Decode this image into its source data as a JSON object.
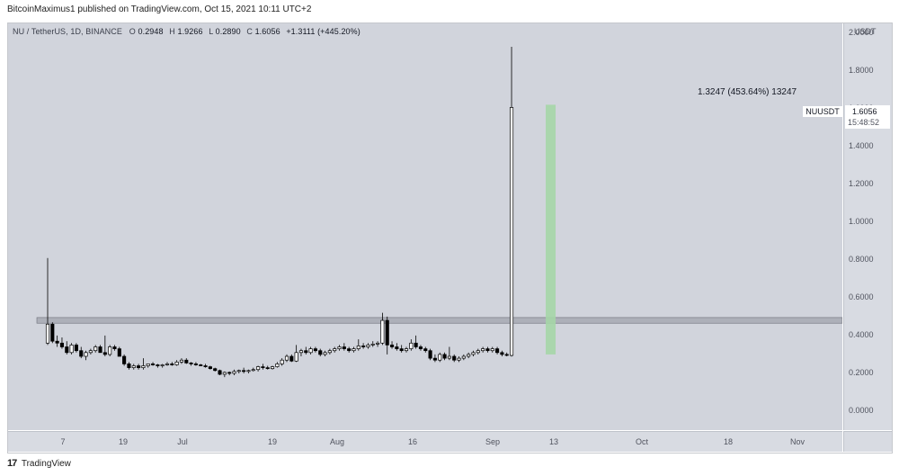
{
  "header": {
    "publish_text": "BitcoinMaximus1 published on TradingView.com, Oct 15, 2021 10:11 UTC+2"
  },
  "legend": {
    "symbol": "NU / TetherUS, 1D, BINANCE",
    "open_label": "O",
    "open": "0.2948",
    "high_label": "H",
    "high": "1.9266",
    "low_label": "L",
    "low": "0.2890",
    "close_label": "C",
    "close": "1.6056",
    "change": "+1.3111 (+445.20%)"
  },
  "price_scale": {
    "currency": "USDT",
    "ticks": [
      "2.0000",
      "1.8000",
      "1.6000",
      "1.4000",
      "1.2000",
      "1.0000",
      "0.8000",
      "0.6000",
      "0.4000",
      "0.2000",
      "0.0000"
    ]
  },
  "time_scale": {
    "ticks": [
      "7",
      "19",
      "Jul",
      "19",
      "Aug",
      "16",
      "Sep",
      "13",
      "Oct",
      "18",
      "Nov"
    ]
  },
  "last_price": {
    "symbol": "NUUSDT",
    "value": "1.6056",
    "countdown": "15:48:52"
  },
  "annotation": {
    "text": "1.3247 (453.64%) 13247"
  },
  "footer": {
    "logo_mark": "17",
    "brand": "TradingView"
  },
  "colors": {
    "background": "#d1d4dc",
    "candle_up": "#ffffff",
    "candle_down": "#000000",
    "support_zone": "#9598a1",
    "target_zone": "#a5d6a7"
  },
  "chart_data": {
    "type": "candlestick",
    "title": "NU / TetherUS, 1D, BINANCE",
    "ylabel": "USDT",
    "ylim": [
      -0.1,
      2.05
    ],
    "x_ticks": [
      "7",
      "19",
      "Jul",
      "19",
      "Aug",
      "16",
      "Sep",
      "13",
      "Oct",
      "18",
      "Nov"
    ],
    "support_zone": [
      0.465,
      0.495
    ],
    "target_zone": [
      0.3,
      1.62
    ],
    "candles": [
      {
        "o": 0.36,
        "h": 0.81,
        "l": 0.35,
        "c": 0.46
      },
      {
        "o": 0.46,
        "h": 0.47,
        "l": 0.36,
        "c": 0.37
      },
      {
        "o": 0.37,
        "h": 0.4,
        "l": 0.34,
        "c": 0.36
      },
      {
        "o": 0.36,
        "h": 0.39,
        "l": 0.33,
        "c": 0.34
      },
      {
        "o": 0.34,
        "h": 0.37,
        "l": 0.3,
        "c": 0.31
      },
      {
        "o": 0.31,
        "h": 0.36,
        "l": 0.3,
        "c": 0.35
      },
      {
        "o": 0.35,
        "h": 0.36,
        "l": 0.31,
        "c": 0.32
      },
      {
        "o": 0.32,
        "h": 0.34,
        "l": 0.28,
        "c": 0.29
      },
      {
        "o": 0.29,
        "h": 0.32,
        "l": 0.27,
        "c": 0.31
      },
      {
        "o": 0.31,
        "h": 0.33,
        "l": 0.3,
        "c": 0.32
      },
      {
        "o": 0.32,
        "h": 0.35,
        "l": 0.31,
        "c": 0.34
      },
      {
        "o": 0.34,
        "h": 0.35,
        "l": 0.31,
        "c": 0.31
      },
      {
        "o": 0.31,
        "h": 0.4,
        "l": 0.29,
        "c": 0.3
      },
      {
        "o": 0.3,
        "h": 0.35,
        "l": 0.29,
        "c": 0.34
      },
      {
        "o": 0.34,
        "h": 0.35,
        "l": 0.32,
        "c": 0.33
      },
      {
        "o": 0.33,
        "h": 0.34,
        "l": 0.29,
        "c": 0.29
      },
      {
        "o": 0.29,
        "h": 0.3,
        "l": 0.24,
        "c": 0.25
      },
      {
        "o": 0.25,
        "h": 0.26,
        "l": 0.22,
        "c": 0.23
      },
      {
        "o": 0.23,
        "h": 0.25,
        "l": 0.22,
        "c": 0.24
      },
      {
        "o": 0.24,
        "h": 0.25,
        "l": 0.22,
        "c": 0.23
      },
      {
        "o": 0.23,
        "h": 0.28,
        "l": 0.22,
        "c": 0.24
      },
      {
        "o": 0.24,
        "h": 0.25,
        "l": 0.23,
        "c": 0.25
      },
      {
        "o": 0.25,
        "h": 0.26,
        "l": 0.24,
        "c": 0.245
      },
      {
        "o": 0.245,
        "h": 0.25,
        "l": 0.23,
        "c": 0.24
      },
      {
        "o": 0.24,
        "h": 0.25,
        "l": 0.23,
        "c": 0.245
      },
      {
        "o": 0.245,
        "h": 0.26,
        "l": 0.24,
        "c": 0.25
      },
      {
        "o": 0.25,
        "h": 0.26,
        "l": 0.24,
        "c": 0.245
      },
      {
        "o": 0.245,
        "h": 0.27,
        "l": 0.24,
        "c": 0.26
      },
      {
        "o": 0.26,
        "h": 0.28,
        "l": 0.25,
        "c": 0.27
      },
      {
        "o": 0.27,
        "h": 0.28,
        "l": 0.25,
        "c": 0.255
      },
      {
        "o": 0.255,
        "h": 0.26,
        "l": 0.24,
        "c": 0.25
      },
      {
        "o": 0.25,
        "h": 0.26,
        "l": 0.24,
        "c": 0.245
      },
      {
        "o": 0.245,
        "h": 0.25,
        "l": 0.24,
        "c": 0.24
      },
      {
        "o": 0.24,
        "h": 0.25,
        "l": 0.23,
        "c": 0.235
      },
      {
        "o": 0.235,
        "h": 0.24,
        "l": 0.22,
        "c": 0.225
      },
      {
        "o": 0.225,
        "h": 0.23,
        "l": 0.21,
        "c": 0.215
      },
      {
        "o": 0.215,
        "h": 0.22,
        "l": 0.19,
        "c": 0.195
      },
      {
        "o": 0.195,
        "h": 0.21,
        "l": 0.18,
        "c": 0.205
      },
      {
        "o": 0.205,
        "h": 0.21,
        "l": 0.19,
        "c": 0.2
      },
      {
        "o": 0.2,
        "h": 0.22,
        "l": 0.19,
        "c": 0.21
      },
      {
        "o": 0.21,
        "h": 0.22,
        "l": 0.2,
        "c": 0.215
      },
      {
        "o": 0.215,
        "h": 0.23,
        "l": 0.2,
        "c": 0.21
      },
      {
        "o": 0.21,
        "h": 0.22,
        "l": 0.2,
        "c": 0.215
      },
      {
        "o": 0.215,
        "h": 0.23,
        "l": 0.21,
        "c": 0.22
      },
      {
        "o": 0.22,
        "h": 0.24,
        "l": 0.21,
        "c": 0.235
      },
      {
        "o": 0.235,
        "h": 0.25,
        "l": 0.22,
        "c": 0.23
      },
      {
        "o": 0.23,
        "h": 0.24,
        "l": 0.22,
        "c": 0.225
      },
      {
        "o": 0.225,
        "h": 0.24,
        "l": 0.22,
        "c": 0.235
      },
      {
        "o": 0.235,
        "h": 0.26,
        "l": 0.23,
        "c": 0.25
      },
      {
        "o": 0.25,
        "h": 0.28,
        "l": 0.24,
        "c": 0.27
      },
      {
        "o": 0.27,
        "h": 0.3,
        "l": 0.26,
        "c": 0.29
      },
      {
        "o": 0.29,
        "h": 0.3,
        "l": 0.26,
        "c": 0.265
      },
      {
        "o": 0.265,
        "h": 0.35,
        "l": 0.26,
        "c": 0.31
      },
      {
        "o": 0.31,
        "h": 0.33,
        "l": 0.29,
        "c": 0.32
      },
      {
        "o": 0.32,
        "h": 0.34,
        "l": 0.3,
        "c": 0.31
      },
      {
        "o": 0.31,
        "h": 0.34,
        "l": 0.3,
        "c": 0.33
      },
      {
        "o": 0.33,
        "h": 0.34,
        "l": 0.31,
        "c": 0.32
      },
      {
        "o": 0.32,
        "h": 0.33,
        "l": 0.29,
        "c": 0.3
      },
      {
        "o": 0.3,
        "h": 0.32,
        "l": 0.29,
        "c": 0.31
      },
      {
        "o": 0.31,
        "h": 0.33,
        "l": 0.3,
        "c": 0.32
      },
      {
        "o": 0.32,
        "h": 0.34,
        "l": 0.31,
        "c": 0.33
      },
      {
        "o": 0.33,
        "h": 0.35,
        "l": 0.32,
        "c": 0.34
      },
      {
        "o": 0.34,
        "h": 0.36,
        "l": 0.32,
        "c": 0.33
      },
      {
        "o": 0.33,
        "h": 0.34,
        "l": 0.31,
        "c": 0.32
      },
      {
        "o": 0.32,
        "h": 0.34,
        "l": 0.31,
        "c": 0.33
      },
      {
        "o": 0.33,
        "h": 0.38,
        "l": 0.32,
        "c": 0.345
      },
      {
        "o": 0.345,
        "h": 0.36,
        "l": 0.33,
        "c": 0.34
      },
      {
        "o": 0.34,
        "h": 0.36,
        "l": 0.33,
        "c": 0.35
      },
      {
        "o": 0.35,
        "h": 0.37,
        "l": 0.34,
        "c": 0.355
      },
      {
        "o": 0.355,
        "h": 0.37,
        "l": 0.34,
        "c": 0.36
      },
      {
        "o": 0.36,
        "h": 0.52,
        "l": 0.35,
        "c": 0.48
      },
      {
        "o": 0.48,
        "h": 0.5,
        "l": 0.3,
        "c": 0.35
      },
      {
        "o": 0.35,
        "h": 0.37,
        "l": 0.33,
        "c": 0.34
      },
      {
        "o": 0.34,
        "h": 0.36,
        "l": 0.32,
        "c": 0.33
      },
      {
        "o": 0.33,
        "h": 0.35,
        "l": 0.31,
        "c": 0.32
      },
      {
        "o": 0.32,
        "h": 0.34,
        "l": 0.31,
        "c": 0.33
      },
      {
        "o": 0.33,
        "h": 0.38,
        "l": 0.32,
        "c": 0.36
      },
      {
        "o": 0.36,
        "h": 0.4,
        "l": 0.33,
        "c": 0.34
      },
      {
        "o": 0.34,
        "h": 0.35,
        "l": 0.32,
        "c": 0.33
      },
      {
        "o": 0.33,
        "h": 0.34,
        "l": 0.31,
        "c": 0.32
      },
      {
        "o": 0.32,
        "h": 0.33,
        "l": 0.27,
        "c": 0.28
      },
      {
        "o": 0.28,
        "h": 0.3,
        "l": 0.26,
        "c": 0.27
      },
      {
        "o": 0.27,
        "h": 0.31,
        "l": 0.26,
        "c": 0.3
      },
      {
        "o": 0.3,
        "h": 0.31,
        "l": 0.27,
        "c": 0.28
      },
      {
        "o": 0.28,
        "h": 0.34,
        "l": 0.27,
        "c": 0.29
      },
      {
        "o": 0.29,
        "h": 0.3,
        "l": 0.26,
        "c": 0.27
      },
      {
        "o": 0.27,
        "h": 0.29,
        "l": 0.26,
        "c": 0.28
      },
      {
        "o": 0.28,
        "h": 0.3,
        "l": 0.27,
        "c": 0.29
      },
      {
        "o": 0.29,
        "h": 0.31,
        "l": 0.28,
        "c": 0.3
      },
      {
        "o": 0.3,
        "h": 0.32,
        "l": 0.29,
        "c": 0.31
      },
      {
        "o": 0.31,
        "h": 0.33,
        "l": 0.3,
        "c": 0.32
      },
      {
        "o": 0.32,
        "h": 0.34,
        "l": 0.31,
        "c": 0.33
      },
      {
        "o": 0.33,
        "h": 0.34,
        "l": 0.31,
        "c": 0.32
      },
      {
        "o": 0.32,
        "h": 0.34,
        "l": 0.31,
        "c": 0.33
      },
      {
        "o": 0.33,
        "h": 0.34,
        "l": 0.3,
        "c": 0.31
      },
      {
        "o": 0.31,
        "h": 0.32,
        "l": 0.29,
        "c": 0.3
      },
      {
        "o": 0.3,
        "h": 0.31,
        "l": 0.29,
        "c": 0.295
      },
      {
        "o": 0.2948,
        "h": 1.9266,
        "l": 0.289,
        "c": 1.6056
      }
    ]
  }
}
